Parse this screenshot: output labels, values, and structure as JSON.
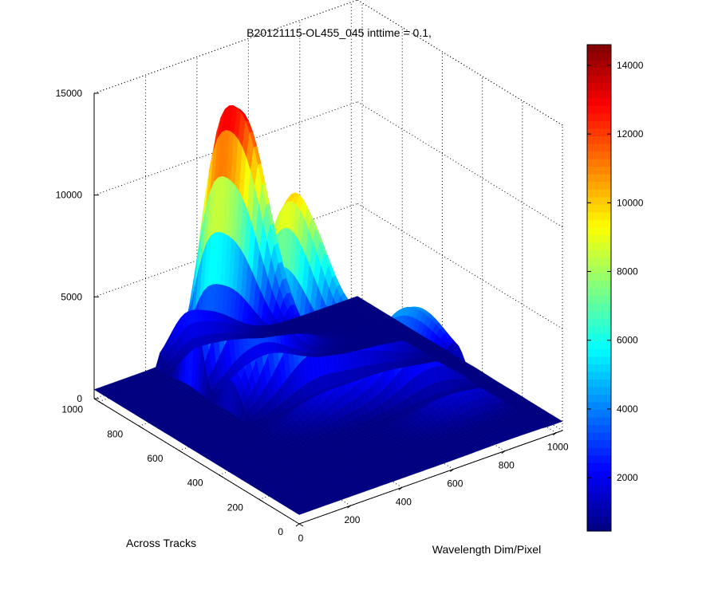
{
  "chart_data": {
    "type": "surface3d",
    "title": "B20121115-OL455_045 inttime = 0.1,",
    "xlabel": "Wavelength Dim/Pixel",
    "ylabel": "Across Tracks",
    "zlabel": "",
    "xlim": [
      0,
      1024
    ],
    "ylim": [
      0,
      1024
    ],
    "zlim": [
      0,
      15000
    ],
    "x_ticks": [
      "0",
      "200",
      "400",
      "600",
      "800",
      "1000"
    ],
    "y_ticks": [
      "0",
      "200",
      "400",
      "600",
      "800",
      "1000"
    ],
    "z_ticks": [
      "0",
      "5000",
      "10000",
      "15000"
    ],
    "grid": true,
    "colormap": "jet",
    "colorbar": {
      "range": [
        450,
        14600
      ],
      "ticks": [
        "2000",
        "4000",
        "6000",
        "8000",
        "10000",
        "12000",
        "14000"
      ]
    },
    "surface_peaks": [
      {
        "x": 420,
        "y": 820,
        "z": 14300
      },
      {
        "x": 470,
        "y": 700,
        "z": 9000
      },
      {
        "x": 560,
        "y": 580,
        "z": 8400
      },
      {
        "x": 330,
        "y": 900,
        "z": 5000
      },
      {
        "x": 820,
        "y": 420,
        "z": 3900
      }
    ],
    "baseline": 450
  }
}
